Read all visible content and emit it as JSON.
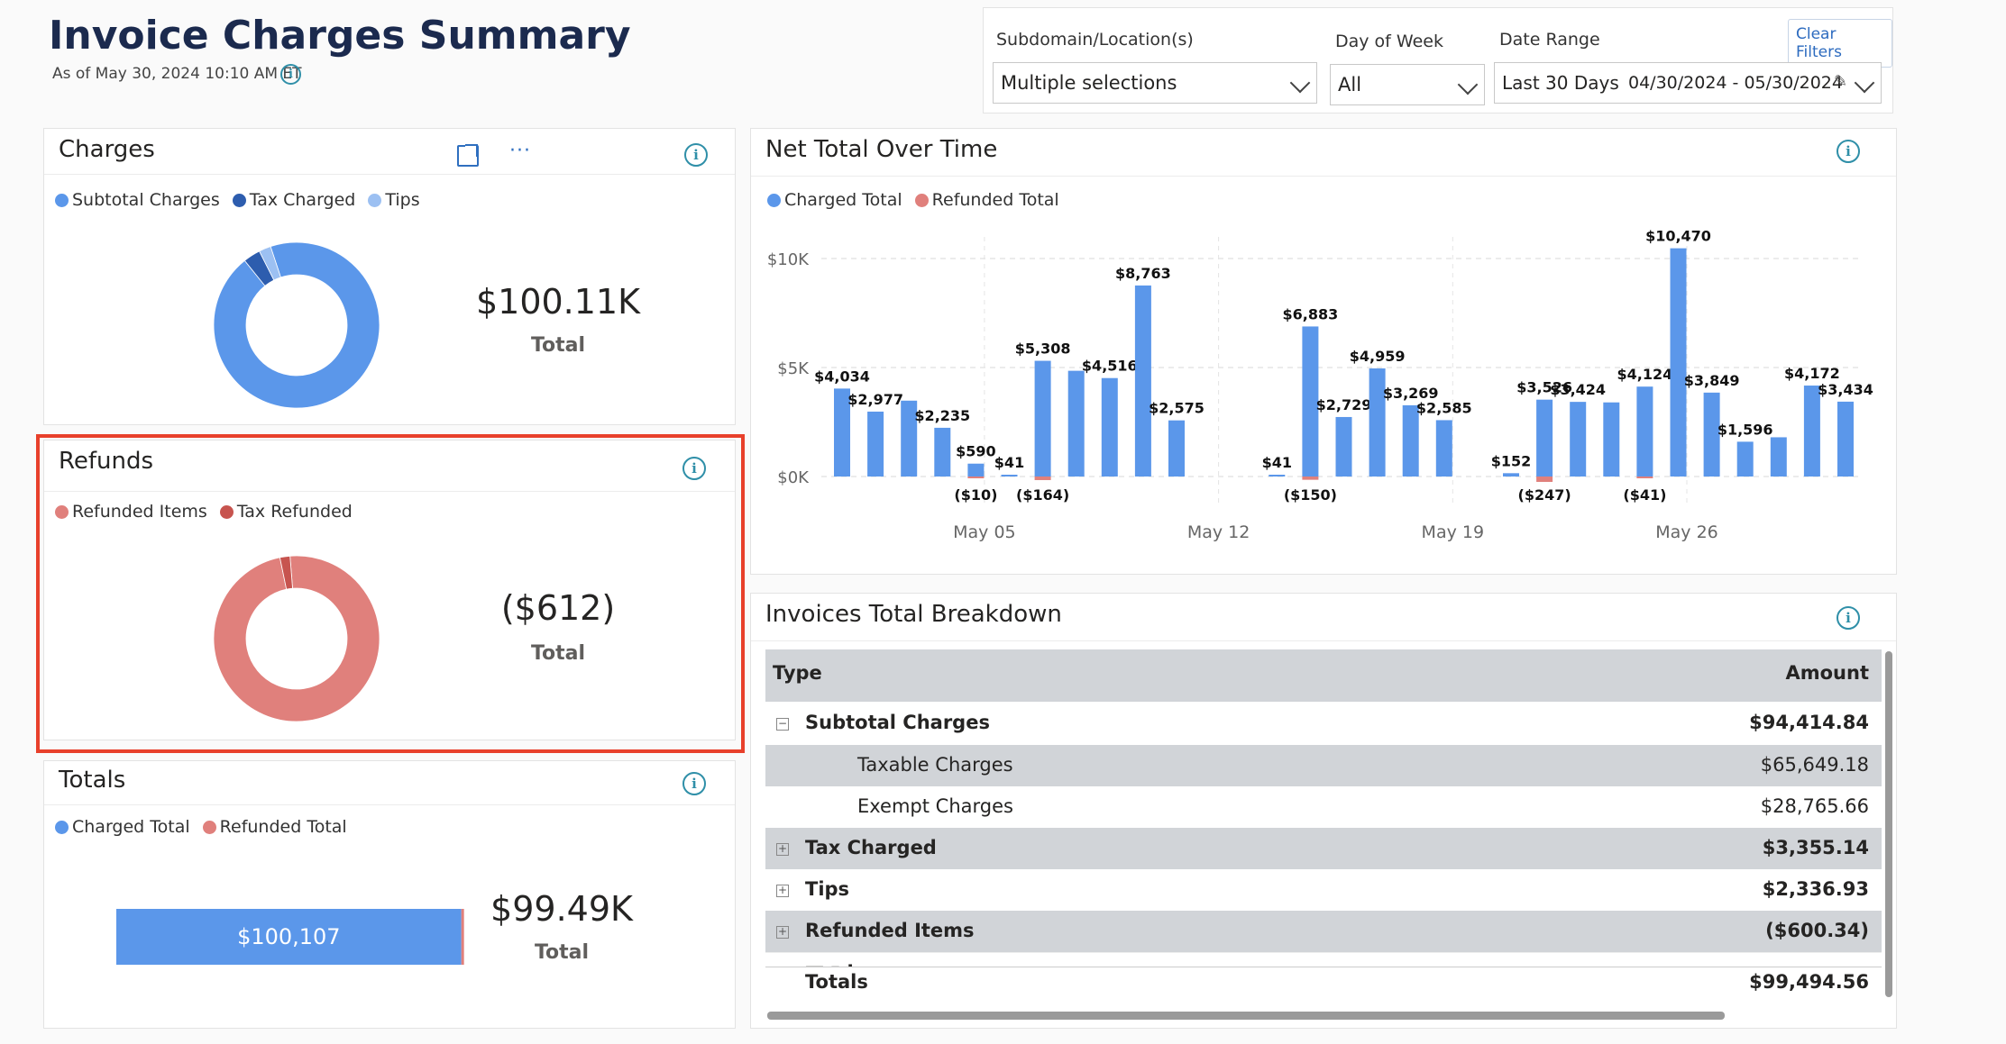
{
  "page": {
    "title": "Invoice Charges Summary",
    "as_of": "As of May 30, 2024 10:10 AM ET"
  },
  "filters": {
    "clear_label": "Clear Filters",
    "subdomain_label": "Subdomain/Location(s)",
    "subdomain_value": "Multiple selections",
    "dow_label": "Day of Week",
    "dow_value": "All",
    "date_label": "Date Range",
    "date_preset": "Last 30 Days",
    "date_range": "04/30/2024 - 05/30/2024"
  },
  "charges": {
    "title": "Charges",
    "legend": [
      "Subtotal Charges",
      "Tax Charged",
      "Tips"
    ],
    "total_value": "$100.11K",
    "total_label": "Total"
  },
  "refunds": {
    "title": "Refunds",
    "legend": [
      "Refunded Items",
      "Tax Refunded"
    ],
    "total_value": "($612)",
    "total_label": "Total"
  },
  "totals": {
    "title": "Totals",
    "legend": [
      "Charged Total",
      "Refunded Total"
    ],
    "bar_label": "$100,107",
    "total_value": "$99.49K",
    "total_label": "Total"
  },
  "net": {
    "title": "Net Total Over Time",
    "legend": [
      "Charged Total",
      "Refunded Total"
    ]
  },
  "breakdown": {
    "title": "Invoices Total Breakdown",
    "col_type": "Type",
    "col_amount": "Amount",
    "rows": [
      {
        "label": "Subtotal Charges",
        "amount": "$94,414.84",
        "bold": true,
        "expander": "minus",
        "indent": 0
      },
      {
        "label": "Taxable Charges",
        "amount": "$65,649.18",
        "bold": false,
        "expander": "",
        "indent": 1
      },
      {
        "label": "Exempt Charges",
        "amount": "$28,765.66",
        "bold": false,
        "expander": "",
        "indent": 1
      },
      {
        "label": "Tax Charged",
        "amount": "$3,355.14",
        "bold": true,
        "expander": "plus",
        "indent": 0
      },
      {
        "label": "Tips",
        "amount": "$2,336.93",
        "bold": true,
        "expander": "plus",
        "indent": 0
      },
      {
        "label": "Refunded Items",
        "amount": "($600.34)",
        "bold": true,
        "expander": "plus",
        "indent": 0
      }
    ],
    "totals_label": "Totals",
    "totals_amount": "$99,494.56"
  },
  "colors": {
    "charged": "#5b97ea",
    "tax": "#2d5dae",
    "tips": "#9cc0f2",
    "refund_items": "#e0807c",
    "refund_tax": "#c7544f",
    "highlight": "#e8402b",
    "info": "#2f8fa8"
  },
  "chart_data": [
    {
      "type": "pie",
      "name": "Charges",
      "categories": [
        "Subtotal Charges",
        "Tax Charged",
        "Tips"
      ],
      "values": [
        94414.84,
        3355.14,
        2336.93
      ]
    },
    {
      "type": "pie",
      "name": "Refunds",
      "categories": [
        "Refunded Items",
        "Tax Refunded"
      ],
      "values": [
        600.34,
        12.01
      ]
    },
    {
      "type": "bar",
      "name": "Totals",
      "categories": [
        "Total"
      ],
      "series": [
        {
          "name": "Charged Total",
          "values": [
            100107
          ]
        },
        {
          "name": "Refunded Total",
          "values": [
            -612
          ]
        }
      ]
    },
    {
      "type": "bar",
      "name": "Net Total Over Time",
      "y_tick_labels": [
        "$0K",
        "$5K",
        "$10K"
      ],
      "ylim": [
        -500,
        11000
      ],
      "x_tick_labels": [
        "May 05",
        "May 12",
        "May 19",
        "May 26"
      ],
      "x_tick_days": [
        5,
        12,
        19,
        26
      ],
      "grid": true,
      "legend_position": "top-left",
      "series": [
        {
          "name": "Charged Total",
          "points": [
            {
              "day": 1,
              "value": 4034,
              "label": "$4,034"
            },
            {
              "day": 2,
              "value": 2977,
              "label": "$2,977"
            },
            {
              "day": 3,
              "value": 3480,
              "label": ""
            },
            {
              "day": 4,
              "value": 2235,
              "label": "$2,235"
            },
            {
              "day": 5,
              "value": 590,
              "label": "$590"
            },
            {
              "day": 6,
              "value": 41,
              "label": "$41"
            },
            {
              "day": 7,
              "value": 5308,
              "label": "$5,308"
            },
            {
              "day": 8,
              "value": 4850,
              "label": ""
            },
            {
              "day": 9,
              "value": 4516,
              "label": "$4,516"
            },
            {
              "day": 10,
              "value": 8763,
              "label": "$8,763"
            },
            {
              "day": 11,
              "value": 2575,
              "label": "$2,575"
            },
            {
              "day": 14,
              "value": 41,
              "label": "$41"
            },
            {
              "day": 15,
              "value": 6883,
              "label": "$6,883"
            },
            {
              "day": 16,
              "value": 2729,
              "label": "$2,729"
            },
            {
              "day": 17,
              "value": 4959,
              "label": "$4,959"
            },
            {
              "day": 18,
              "value": 3269,
              "label": "$3,269"
            },
            {
              "day": 19,
              "value": 2585,
              "label": "$2,585"
            },
            {
              "day": 21,
              "value": 152,
              "label": "$152"
            },
            {
              "day": 22,
              "value": 3526,
              "label": "$3,526"
            },
            {
              "day": 23,
              "value": 3424,
              "label": "$3,424"
            },
            {
              "day": 24,
              "value": 3400,
              "label": ""
            },
            {
              "day": 25,
              "value": 4124,
              "label": "$4,124"
            },
            {
              "day": 26,
              "value": 10470,
              "label": "$10,470"
            },
            {
              "day": 27,
              "value": 3849,
              "label": "$3,849"
            },
            {
              "day": 28,
              "value": 1596,
              "label": "$1,596"
            },
            {
              "day": 29,
              "value": 1800,
              "label": ""
            },
            {
              "day": 30,
              "value": 4172,
              "label": "$4,172"
            },
            {
              "day": 31,
              "value": 3434,
              "label": "$3,434"
            }
          ]
        },
        {
          "name": "Refunded Total",
          "points": [
            {
              "day": 5,
              "value": -10,
              "label": "($10)"
            },
            {
              "day": 7,
              "value": -164,
              "label": "($164)"
            },
            {
              "day": 15,
              "value": -150,
              "label": "($150)"
            },
            {
              "day": 22,
              "value": -247,
              "label": "($247)"
            },
            {
              "day": 25,
              "value": -41,
              "label": "($41)"
            }
          ]
        }
      ]
    }
  ]
}
